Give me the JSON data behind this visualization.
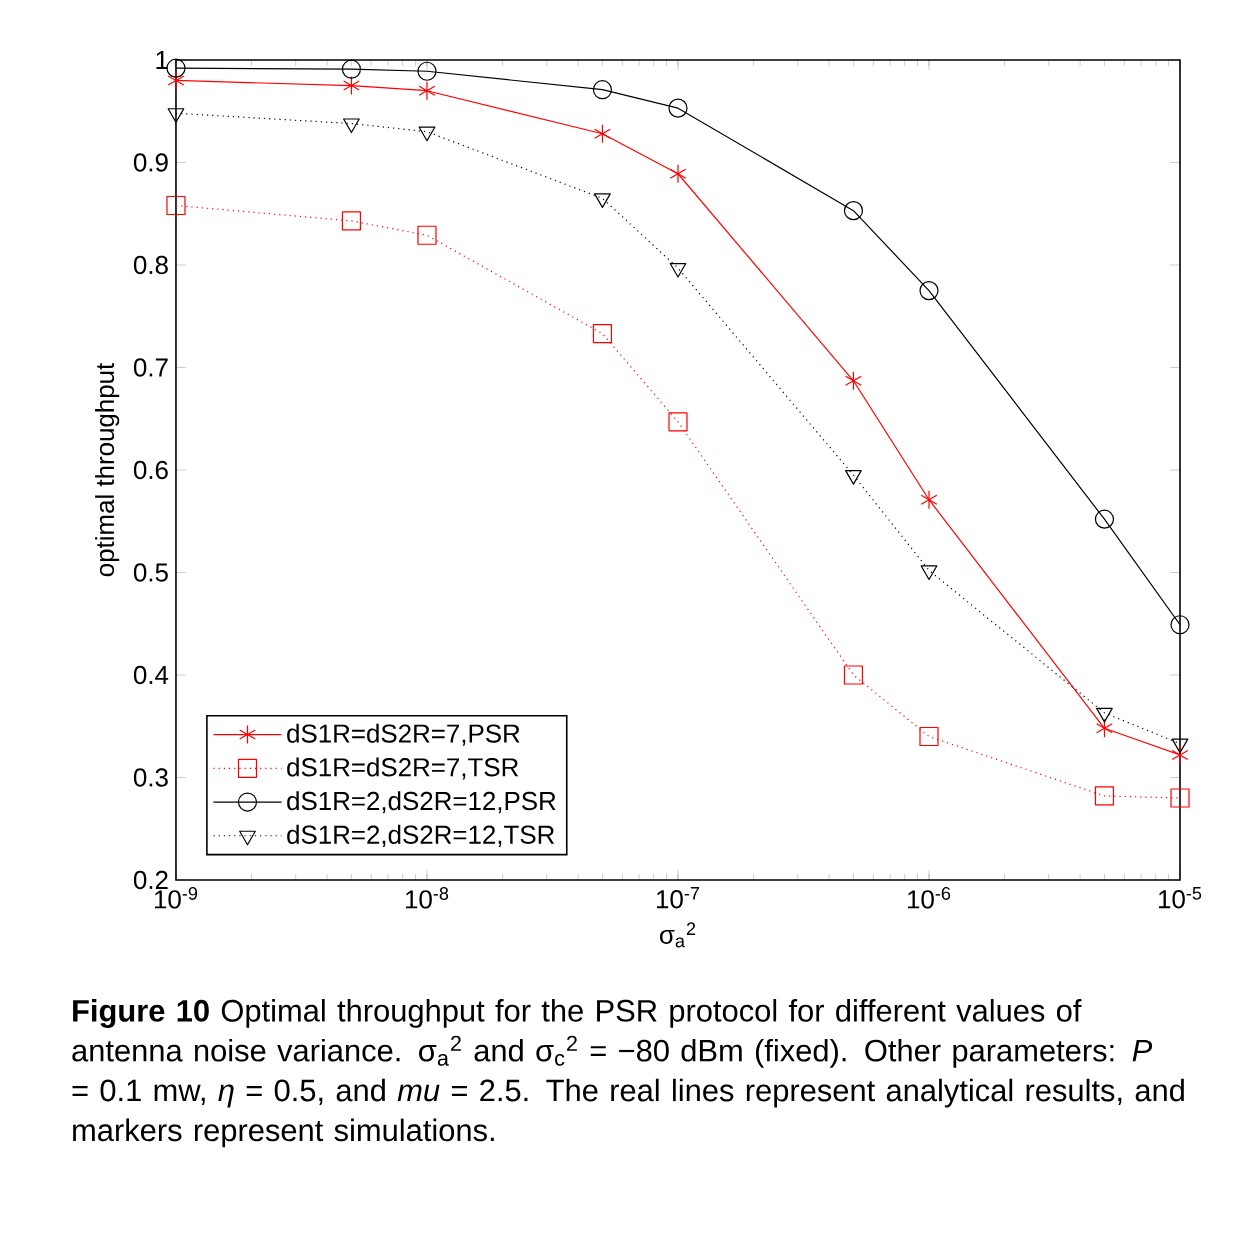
{
  "chart_data": {
    "type": "line",
    "xlabel": "σ$_{a}$$^{2}$",
    "ylabel": "optimal throughput",
    "x": [
      1e-09,
      5e-09,
      1e-08,
      5e-08,
      1e-07,
      5e-07,
      1e-06,
      5e-06,
      1e-05
    ],
    "log": "x",
    "xlim": [
      1e-09,
      1e-05
    ],
    "ylim": [
      0.2,
      1
    ],
    "xticks": [
      {
        "value": 1e-09,
        "label": "10$^{-9}$"
      },
      {
        "value": 1e-08,
        "label": "10$^{-8}$"
      },
      {
        "value": 1e-07,
        "label": "10$^{-7}$"
      },
      {
        "value": 1e-06,
        "label": "10$^{-6}$"
      },
      {
        "value": 1e-05,
        "label": "10$^{-5}$"
      }
    ],
    "yticks": [
      0.2,
      0.3,
      0.4,
      0.5,
      0.6,
      0.7,
      0.8,
      0.9,
      1
    ],
    "grid": false,
    "legend": "bottom left",
    "series": [
      {
        "name": "dS1R=dS2R=7,PSR",
        "color": "#ff0000",
        "marker": "cross",
        "line_style": "solid",
        "values": [
          0.98,
          0.975,
          0.97,
          0.928,
          0.889,
          0.687,
          0.571,
          0.348,
          0.322
        ]
      },
      {
        "name": "dS1R=dS2R=7,TSR",
        "color": "#ff0000",
        "marker": "square",
        "line_style": "dotted",
        "values": [
          0.858,
          0.843,
          0.829,
          0.733,
          0.647,
          0.4,
          0.34,
          0.282,
          0.28
        ]
      },
      {
        "name": "dS1R=2,dS2R=12,PSR",
        "color": "#000000",
        "marker": "circle",
        "line_style": "solid",
        "values": [
          0.992,
          0.991,
          0.989,
          0.971,
          0.953,
          0.853,
          0.775,
          0.552,
          0.449
        ]
      },
      {
        "name": "dS1R=2,dS2R=12,TSR",
        "color": "#000000",
        "marker": "triangle",
        "line_style": "dotted",
        "values": [
          0.948,
          0.938,
          0.93,
          0.865,
          0.797,
          0.595,
          0.502,
          0.363,
          0.333
        ]
      }
    ],
    "annotations": [
      "**Figure 10** Optimal throughput for the PSR protocol for different values of antenna noise variance. σ$_{a}$$^{2}$ and σ$_{c}$$^{2}$ = −80 dBm (fixed). Other parameters: *P* = 0.1 mw, *η* = 0.5, and *mu* = 2.5. The real lines represent analytical results, and markers represent simulations."
    ]
  }
}
